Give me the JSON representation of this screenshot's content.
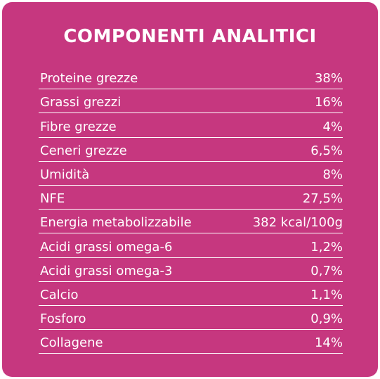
{
  "title": "COMPONENTI ANALITICI",
  "table": {
    "rows": [
      [
        "Proteine grezze",
        "38%"
      ],
      [
        "Grassi grezzi",
        "16%"
      ],
      [
        "Fibre grezze",
        "4%"
      ],
      [
        "Ceneri grezze",
        "6,5%"
      ],
      [
        "Umidità",
        "8%"
      ],
      [
        "NFE",
        "27,5%"
      ],
      [
        "Energia metabolizzabile",
        "382 kcal/100g"
      ],
      [
        "Acidi grassi omega-6",
        "1,2%"
      ],
      [
        "Acidi grassi omega-3",
        "0,7%"
      ],
      [
        "Calcio",
        "1,1%"
      ],
      [
        "Fosforo",
        "0,9%"
      ],
      [
        "Collagene",
        "14%"
      ]
    ]
  }
}
